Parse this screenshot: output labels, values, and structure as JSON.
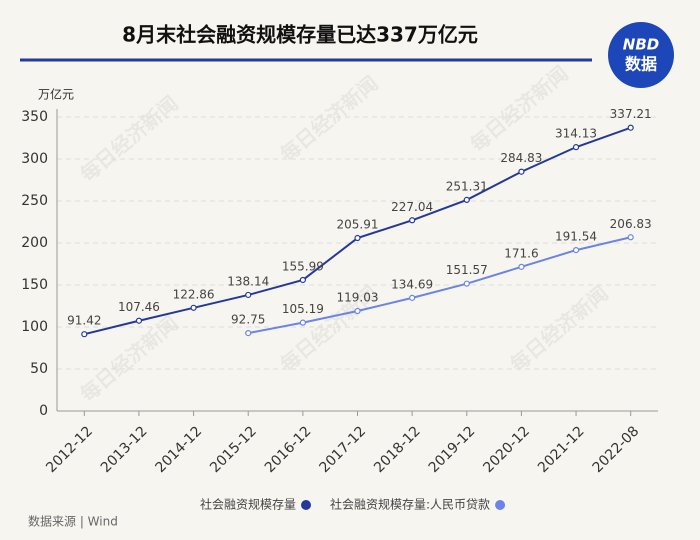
{
  "chart_data": {
    "type": "line",
    "title": "8月末社会融资规模存量已达337万亿元",
    "y_axis_label": "万亿元",
    "source": "数据来源 | Wind",
    "logo": [
      "NBD",
      "数据"
    ],
    "watermark": "每日经济新闻",
    "categories": [
      "2012-12",
      "2013-12",
      "2014-12",
      "2015-12",
      "2016-12",
      "2017-12",
      "2018-12",
      "2019-12",
      "2020-12",
      "2021-12",
      "2022-08"
    ],
    "series": [
      {
        "name": "社会融资规模存量",
        "color": "#24399a",
        "values": [
          91.42,
          107.46,
          122.86,
          138.14,
          155.99,
          205.91,
          227.04,
          251.31,
          284.83,
          314.13,
          337.21
        ]
      },
      {
        "name": "社会融资规模存量:人民币贷款",
        "color": "#6b84e6",
        "values": [
          null,
          null,
          null,
          92.75,
          105.19,
          119.03,
          134.69,
          151.57,
          171.6,
          191.54,
          206.83
        ]
      }
    ],
    "ylim": [
      0,
      350
    ],
    "yticks": [
      0,
      50,
      100,
      150,
      200,
      250,
      300,
      350
    ],
    "grid": true
  }
}
